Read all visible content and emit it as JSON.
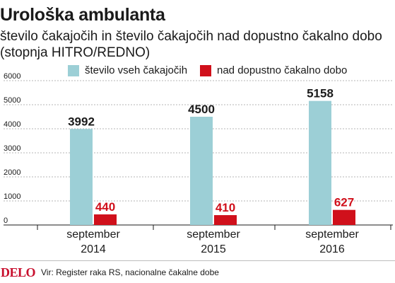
{
  "header": {
    "title": "Urološka ambulanta",
    "subtitle": "število čakajočih in število čakajočih nad dopustno čakalno dobo (stopnja HITRO/REDNO)"
  },
  "legend": [
    {
      "label": "število vseh čakajočih",
      "color": "#9ccfd6"
    },
    {
      "label": "nad dopustno čakalno dobo",
      "color": "#d0101b"
    }
  ],
  "chart_data": {
    "type": "bar",
    "categories": [
      "september 2014",
      "september 2015",
      "september 2016"
    ],
    "category_lines": [
      [
        "september",
        "2014"
      ],
      [
        "september",
        "2015"
      ],
      [
        "september",
        "2016"
      ]
    ],
    "series": [
      {
        "name": "število vseh čakajočih",
        "values": [
          3992,
          4500,
          5158
        ],
        "color": "#9ccfd6",
        "label_color": "#1a1a1a"
      },
      {
        "name": "nad dopustno čakalno dobo",
        "values": [
          440,
          410,
          627
        ],
        "color": "#d0101b",
        "label_color": "#d0101b"
      }
    ],
    "yticks": [
      0,
      1000,
      2000,
      3000,
      4000,
      5000,
      6000
    ],
    "ylim": [
      0,
      6000
    ],
    "grid": true,
    "legend_position": "top"
  },
  "footer": {
    "logo": "DELO",
    "source": "Vir: Register raka RS, nacionalne čakalne dobe"
  }
}
